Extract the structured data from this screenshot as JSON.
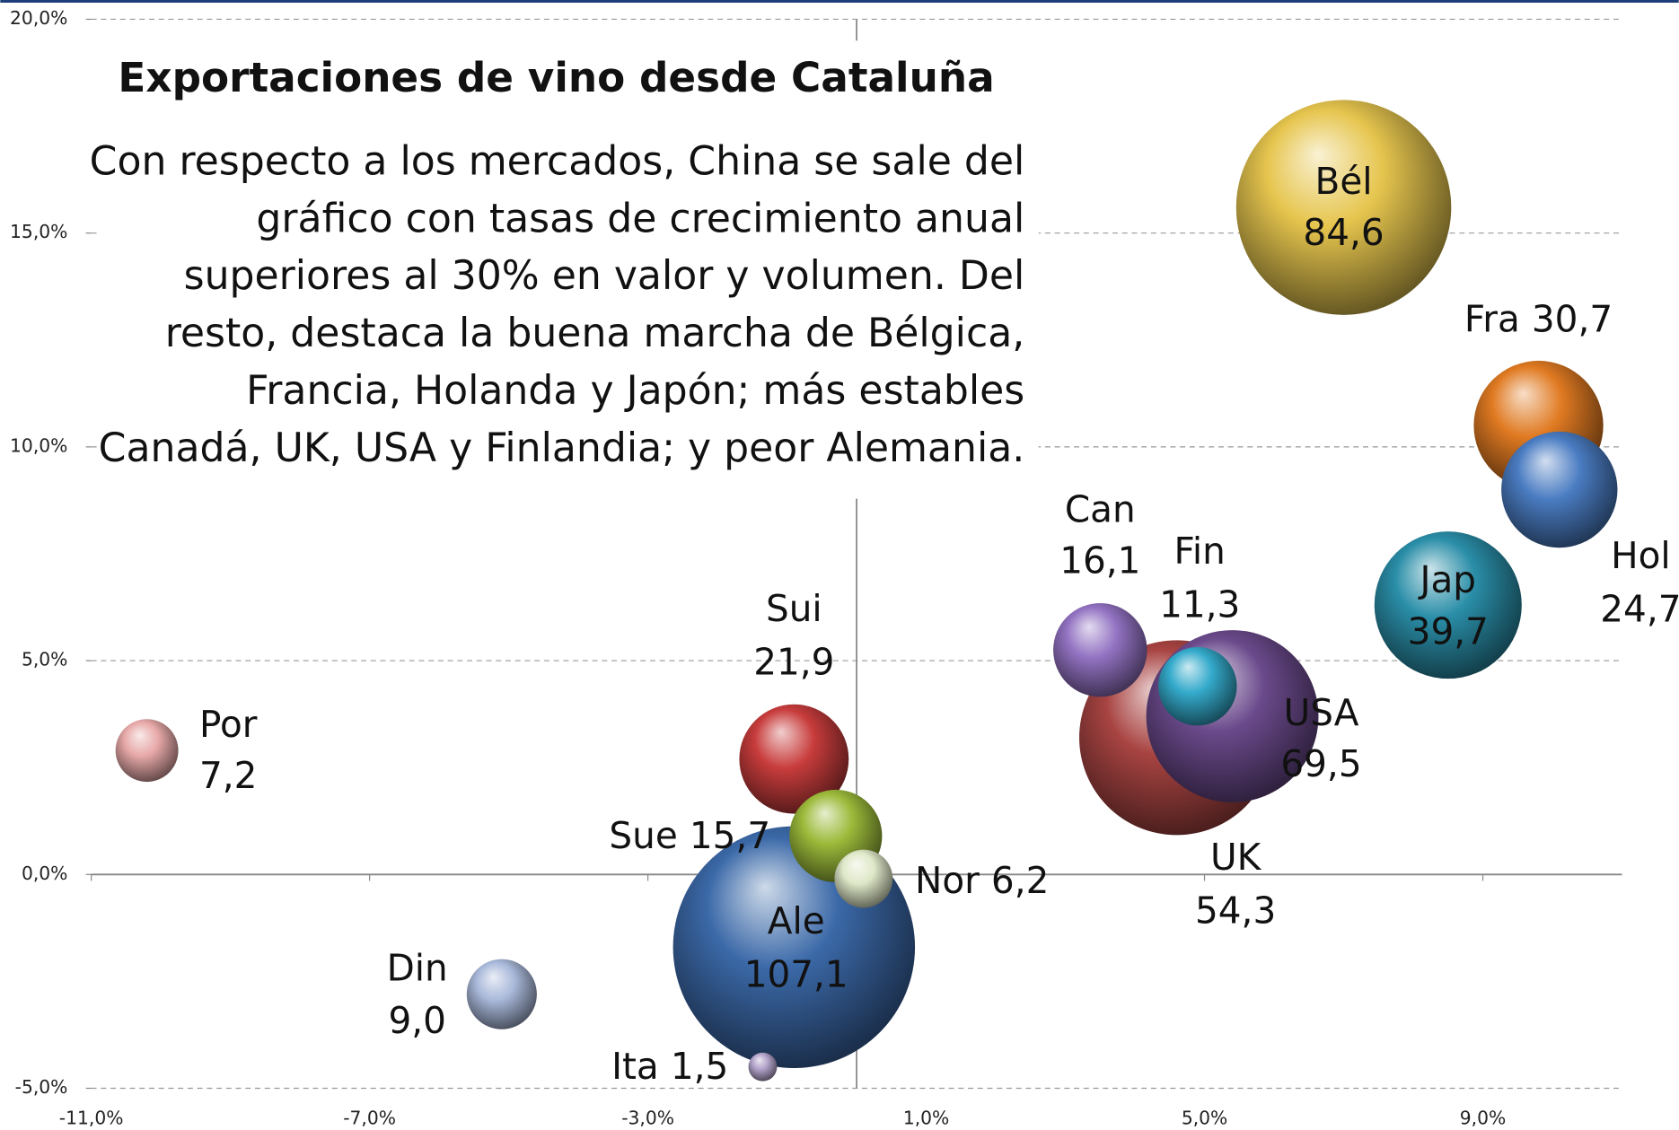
{
  "chart_data": {
    "type": "bubble",
    "title": "Exportaciones de vino desde Cataluña",
    "annotation": [
      "Con respecto a los mercados, China se sale del",
      "gráfico con tasas de crecimiento anual",
      "superiores al 30% en valor y volumen. Del",
      "resto, destaca la buena marcha de Bélgica,",
      "Francia, Holanda y Japón; más estables",
      "Canadá, UK, USA y Finlandia; y peor Alemania."
    ],
    "categories": [
      "Bél",
      "Fra",
      "Hol",
      "Jap",
      "USA",
      "UK",
      "Can",
      "Fin",
      "Ale",
      "Sui",
      "Sue",
      "Nor",
      "Din",
      "Ita",
      "Por"
    ],
    "x": [
      7.0,
      9.8,
      10.1,
      8.5,
      4.6,
      5.4,
      3.5,
      4.9,
      -0.9,
      -0.9,
      -0.3,
      0.1,
      -5.1,
      -1.35,
      -10.2
    ],
    "values": [
      15.6,
      10.5,
      9.0,
      6.3,
      3.2,
      3.7,
      5.25,
      4.4,
      -1.7,
      2.7,
      0.9,
      -0.1,
      -2.8,
      -4.5,
      2.9
    ],
    "sizes": [
      84.6,
      30.7,
      24.7,
      39.7,
      69.5,
      54.3,
      16.1,
      11.3,
      107.1,
      21.9,
      15.7,
      6.2,
      9.0,
      1.5,
      7.2
    ],
    "size_labels": [
      "84,6",
      "30,7",
      "24,7",
      "39,7",
      "69,5",
      "54,3",
      "16,1",
      "11,3",
      "107,1",
      "21,9",
      "15,7",
      "6,2",
      "9,0",
      "1,5",
      "7,2"
    ],
    "colors": [
      "#e6c54e",
      "#e07a22",
      "#4a7cc2",
      "#2a8ea8",
      "#a84442",
      "#6b4a8c",
      "#9272c2",
      "#34aacb",
      "#3b69a8",
      "#c83c3c",
      "#9cba3a",
      "#dfe8c8",
      "#a9b9da",
      "#b2a3ca",
      "#e8a9a9"
    ],
    "xlim": [
      -11,
      11
    ],
    "ylim": [
      -5,
      20
    ],
    "xticks": [
      {
        "value": -11,
        "label": "-11,0%"
      },
      {
        "value": -7,
        "label": "-7,0%"
      },
      {
        "value": -3,
        "label": "-3,0%"
      },
      {
        "value": 1,
        "label": "1,0%"
      },
      {
        "value": 5,
        "label": "5,0%"
      },
      {
        "value": 9,
        "label": "9,0%"
      }
    ],
    "yticks": [
      {
        "value": -5,
        "label": "-5,0%"
      },
      {
        "value": 0,
        "label": "0,0%"
      },
      {
        "value": 5,
        "label": "5,0%"
      },
      {
        "value": 10,
        "label": "10,0%"
      },
      {
        "value": 15,
        "label": "15,0%"
      },
      {
        "value": 20,
        "label": "20,0%"
      }
    ],
    "grid": true
  }
}
